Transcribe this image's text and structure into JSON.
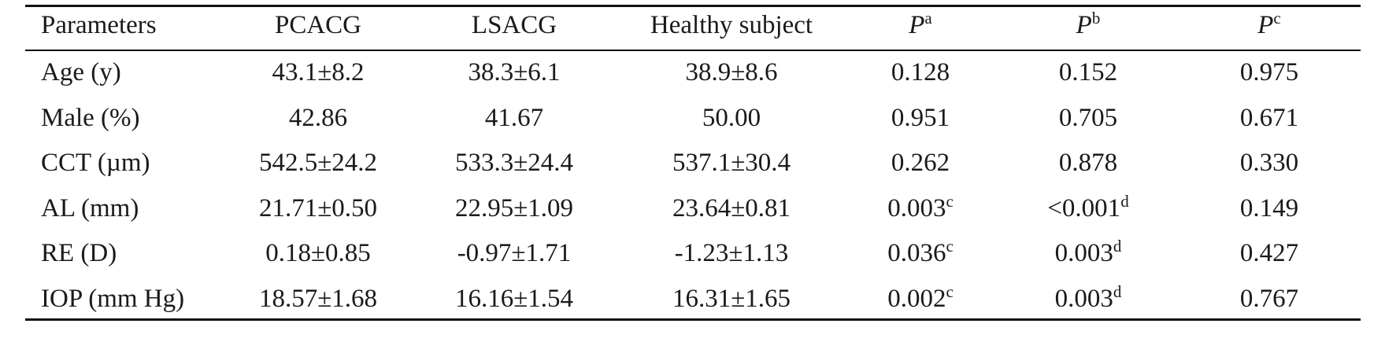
{
  "table": {
    "headers": [
      "Parameters",
      "PCACG",
      "LSACG",
      "Healthy subject"
    ],
    "p_header": {
      "symbol": "P",
      "sups": [
        "a",
        "b",
        "c"
      ]
    },
    "rows": [
      {
        "label": "Age (y)",
        "pcacg": "43.1±8.2",
        "lsacg": "38.3±6.1",
        "healthy": "38.9±8.6",
        "pa": "0.128",
        "pa_sup": "",
        "pb": "0.152",
        "pb_sup": "",
        "pc": "0.975"
      },
      {
        "label": "Male (%)",
        "pcacg": "42.86",
        "lsacg": "41.67",
        "healthy": "50.00",
        "pa": "0.951",
        "pa_sup": "",
        "pb": "0.705",
        "pb_sup": "",
        "pc": "0.671"
      },
      {
        "label": "CCT (µm)",
        "pcacg": "542.5±24.2",
        "lsacg": "533.3±24.4",
        "healthy": "537.1±30.4",
        "pa": "0.262",
        "pa_sup": "",
        "pb": "0.878",
        "pb_sup": "",
        "pc": "0.330"
      },
      {
        "label": "AL (mm)",
        "pcacg": "21.71±0.50",
        "lsacg": "22.95±1.09",
        "healthy": "23.64±0.81",
        "pa": "0.003",
        "pa_sup": "c",
        "pb": "<0.001",
        "pb_sup": "d",
        "pc": "0.149"
      },
      {
        "label": "RE (D)",
        "pcacg": "0.18±0.85",
        "lsacg": "-0.97±1.71",
        "healthy": "-1.23±1.13",
        "pa": "0.036",
        "pa_sup": "c",
        "pb": "0.003",
        "pb_sup": "d",
        "pc": "0.427"
      },
      {
        "label": "IOP (mm Hg)",
        "pcacg": "18.57±1.68",
        "lsacg": "16.16±1.54",
        "healthy": "16.31±1.65",
        "pa": "0.002",
        "pa_sup": "c",
        "pb": "0.003",
        "pb_sup": "d",
        "pc": "0.767"
      }
    ]
  }
}
